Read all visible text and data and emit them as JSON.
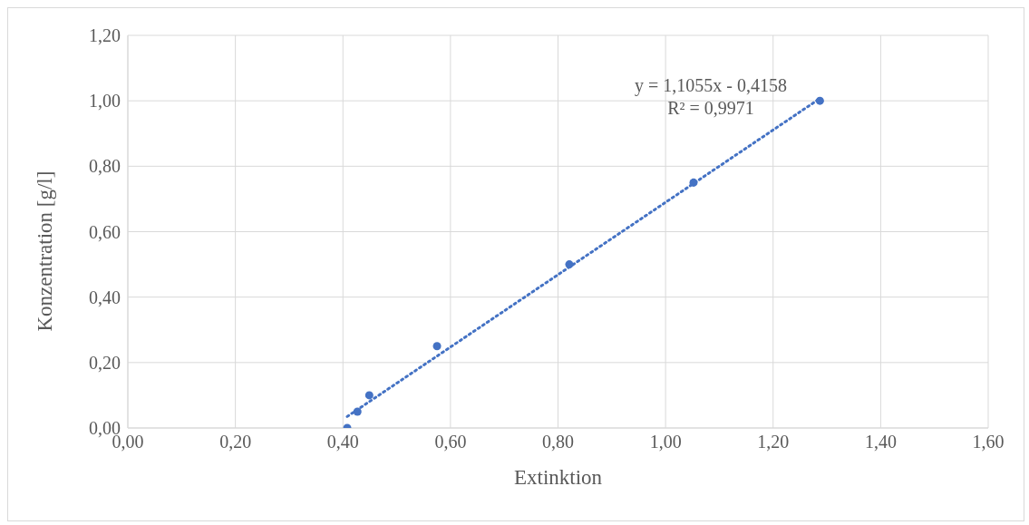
{
  "chart_data": {
    "type": "scatter",
    "xlabel": "Extinktion",
    "ylabel": "Konzentration [g/l]",
    "x": [
      0.408,
      0.427,
      0.449,
      0.575,
      0.821,
      1.052,
      1.287
    ],
    "series": [
      {
        "color": "#4472c4",
        "marker": "circle",
        "values": [
          0,
          0.05,
          0.1,
          0.25,
          0.5,
          0.75,
          1.0
        ]
      },
      {
        "type": "line",
        "color": "#4472c4",
        "line_style": "dotted",
        "x": [
          0.408,
          1.287
        ],
        "values": [
          0.035,
          1.007
        ]
      }
    ],
    "xlim": [
      0,
      1.6
    ],
    "ylim": [
      0,
      1.2
    ],
    "xticks": [
      {
        "value": 0,
        "label": "0,00"
      },
      {
        "value": 0.2,
        "label": "0,20"
      },
      {
        "value": 0.4,
        "label": "0,40"
      },
      {
        "value": 0.6,
        "label": "0,60"
      },
      {
        "value": 0.8,
        "label": "0,80"
      },
      {
        "value": 1.0,
        "label": "1,00"
      },
      {
        "value": 1.2,
        "label": "1,20"
      },
      {
        "value": 1.4,
        "label": "1,40"
      },
      {
        "value": 1.6,
        "label": "1,60"
      }
    ],
    "yticks": [
      {
        "value": 0,
        "label": "0,00"
      },
      {
        "value": 0.2,
        "label": "0,20"
      },
      {
        "value": 0.4,
        "label": "0,40"
      },
      {
        "value": 0.6,
        "label": "0,60"
      },
      {
        "value": 0.8,
        "label": "0,80"
      },
      {
        "value": 1.0,
        "label": "1,00"
      },
      {
        "value": 1.2,
        "label": "1,20"
      }
    ],
    "annotations": [
      "y = 1,1055x - 0,4158",
      "R² = 0,9971"
    ],
    "grid": true
  }
}
